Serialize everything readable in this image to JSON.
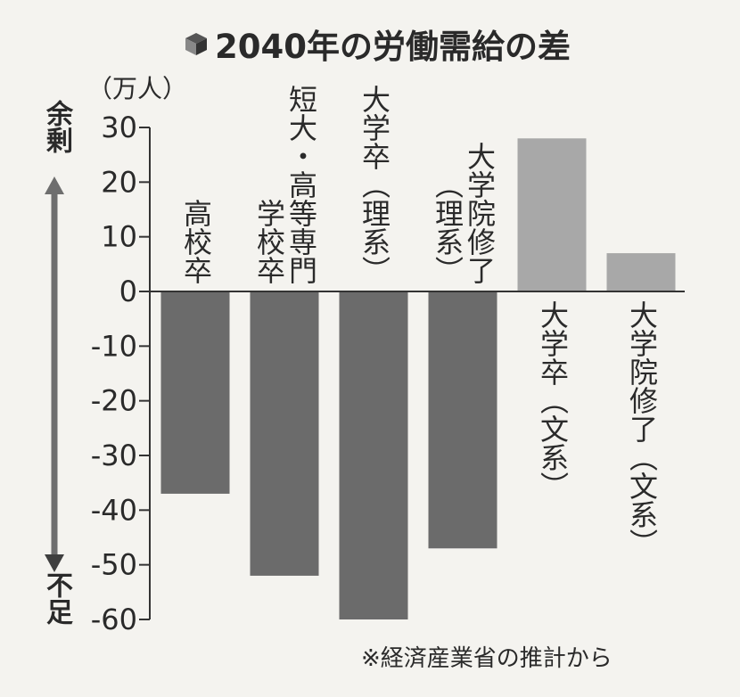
{
  "title": "2040年の労働需給の差",
  "unit_label": "（万人）",
  "side_labels": {
    "top": "余剰",
    "bottom": "不足"
  },
  "note": "※経済産業省の推計から",
  "icon": "cube-icon",
  "colors": {
    "negative": "#6b6b6b",
    "positive": "#a8a8a8",
    "arrow": "#6e6e6e"
  },
  "chart_data": {
    "type": "bar",
    "categories": [
      "高校卒",
      "短大・高等専門学校卒",
      "大学卒（理系）",
      "大学院修了（理系）",
      "大学卒（文系）",
      "大学院修了（文系）"
    ],
    "category_label_columns": [
      [
        "高校卒"
      ],
      [
        "短大・高等専門",
        "学校卒"
      ],
      [
        "大学卒（理系）"
      ],
      [
        "大学院修了",
        "（理系）"
      ],
      [
        "大学卒（文系）"
      ],
      [
        "大学院修了（文系）"
      ]
    ],
    "values": [
      -37,
      -52,
      -60,
      -47,
      28,
      7
    ],
    "ylim": [
      -60,
      30
    ],
    "yticks": [
      30,
      20,
      10,
      0,
      -10,
      -20,
      -30,
      -40,
      -50,
      -60
    ],
    "ytick_labels": [
      "30",
      "20",
      "10",
      "0",
      "-10",
      "-20",
      "-30",
      "-40",
      "-50",
      "-60"
    ],
    "ylabel": "（万人）",
    "grid": false,
    "legend": "none"
  }
}
